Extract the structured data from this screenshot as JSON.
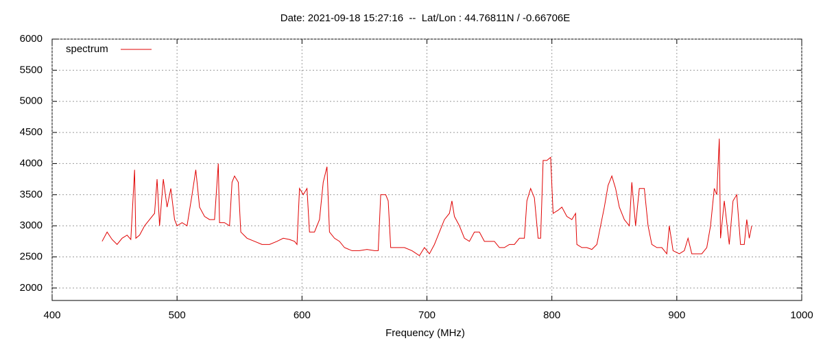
{
  "chart_data": {
    "type": "line",
    "title": "Date: 2021-09-18 15:27:16  --  Lat/Lon : 44.76811N / -0.66706E",
    "x_label": "Frequency (MHz)",
    "xlim": [
      400,
      1000
    ],
    "xticks": [
      400,
      500,
      600,
      700,
      800,
      900,
      1000
    ],
    "ylim": [
      1800,
      6000
    ],
    "yticks": [
      2000,
      2500,
      3000,
      3500,
      4000,
      4500,
      5000,
      5500,
      6000
    ],
    "grid": true,
    "legend": "top-left",
    "x": [
      440,
      444,
      448,
      452,
      456,
      460,
      463,
      466,
      467,
      470,
      474,
      478,
      482,
      484,
      486,
      489,
      492,
      495,
      498,
      500,
      504,
      508,
      512,
      515,
      518,
      522,
      526,
      530,
      533,
      534,
      538,
      542,
      544,
      546,
      549,
      551,
      556,
      562,
      568,
      574,
      580,
      585,
      590,
      594,
      596,
      598,
      601,
      604,
      606,
      610,
      614,
      617,
      620,
      622,
      626,
      630,
      634,
      640,
      646,
      652,
      658,
      661,
      663,
      667,
      669,
      671,
      676,
      682,
      688,
      694,
      698,
      702,
      706,
      710,
      714,
      718,
      720,
      722,
      726,
      730,
      734,
      738,
      742,
      746,
      750,
      754,
      758,
      762,
      766,
      770,
      774,
      778,
      780,
      783,
      786,
      789,
      791,
      793,
      796,
      799,
      801,
      805,
      808,
      812,
      816,
      819,
      820,
      824,
      828,
      832,
      836,
      838,
      842,
      845,
      848,
      851,
      854,
      858,
      862,
      864,
      867,
      870,
      874,
      877,
      880,
      884,
      888,
      892,
      894,
      897,
      902,
      906,
      909,
      912,
      916,
      920,
      924,
      927,
      930,
      932,
      934,
      935,
      938,
      942,
      945,
      948,
      951,
      954,
      956,
      958,
      960
    ],
    "series": [
      {
        "name": "spectrum",
        "color": "#e00000",
        "values": [
          2750,
          2900,
          2780,
          2700,
          2800,
          2850,
          2780,
          3900,
          2800,
          2850,
          3000,
          3100,
          3200,
          3750,
          3000,
          3750,
          3300,
          3600,
          3100,
          3000,
          3050,
          3000,
          3500,
          3900,
          3300,
          3150,
          3100,
          3100,
          4000,
          3050,
          3050,
          3000,
          3700,
          3800,
          3700,
          2900,
          2800,
          2750,
          2700,
          2700,
          2750,
          2800,
          2780,
          2750,
          2700,
          3600,
          3500,
          3600,
          2900,
          2900,
          3100,
          3700,
          3950,
          2900,
          2800,
          2750,
          2650,
          2600,
          2600,
          2620,
          2600,
          2600,
          3500,
          3500,
          3400,
          2650,
          2650,
          2650,
          2600,
          2520,
          2650,
          2550,
          2700,
          2900,
          3100,
          3200,
          3400,
          3150,
          3000,
          2800,
          2750,
          2900,
          2900,
          2750,
          2750,
          2750,
          2650,
          2650,
          2700,
          2700,
          2800,
          2800,
          3400,
          3600,
          3450,
          2800,
          2800,
          4050,
          4050,
          4100,
          3200,
          3250,
          3300,
          3150,
          3100,
          3200,
          2700,
          2650,
          2650,
          2620,
          2700,
          2900,
          3300,
          3650,
          3800,
          3600,
          3300,
          3100,
          3000,
          3700,
          3000,
          3600,
          3600,
          3000,
          2700,
          2650,
          2650,
          2550,
          3000,
          2600,
          2550,
          2600,
          2800,
          2550,
          2550,
          2550,
          2650,
          3000,
          3600,
          3500,
          4400,
          2800,
          3400,
          2700,
          3400,
          3500,
          2700,
          2700,
          3100,
          2800,
          3000
        ]
      }
    ]
  }
}
